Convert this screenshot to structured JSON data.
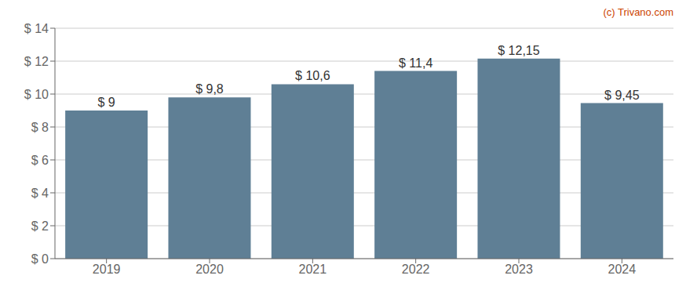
{
  "chart_data": {
    "type": "bar",
    "categories": [
      "2019",
      "2020",
      "2021",
      "2022",
      "2023",
      "2024"
    ],
    "values": [
      9.0,
      9.8,
      10.6,
      11.4,
      12.15,
      9.45
    ],
    "value_labels": [
      "$ 9",
      "$ 9,8",
      "$ 10,6",
      "$ 11,4",
      "$ 12,15",
      "$ 9,45"
    ],
    "data_labels": true,
    "color": "#5f7f95",
    "ylim": [
      0,
      14
    ],
    "yticks": [
      {
        "value": 0,
        "label": "$ 0"
      },
      {
        "value": 2,
        "label": "$ 2"
      },
      {
        "value": 4,
        "label": "$ 4"
      },
      {
        "value": 6,
        "label": "$ 6"
      },
      {
        "value": 8,
        "label": "$ 8"
      },
      {
        "value": 10,
        "label": "$ 10"
      },
      {
        "value": 12,
        "label": "$ 12"
      },
      {
        "value": 14,
        "label": "$ 14"
      }
    ],
    "grid": true,
    "annotations": [
      {
        "text": "(c) Trivano.com",
        "color": "#cc4400"
      }
    ]
  }
}
